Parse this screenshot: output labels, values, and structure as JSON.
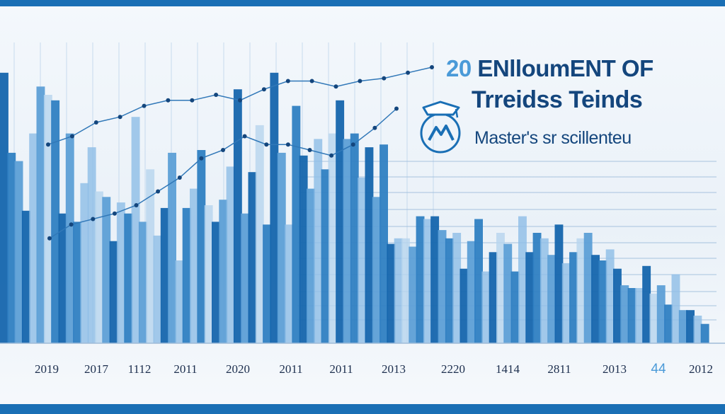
{
  "colors": {
    "frame": "#1a6fb5",
    "accent": "#4a9ad8",
    "title": "#14467d",
    "bar_palette": [
      "#1565ad",
      "#2f7fc2",
      "#5d9fd6",
      "#8dbde6",
      "#b6d4ee"
    ],
    "line": "#3178b8"
  },
  "title": {
    "number": "20",
    "line1_rest": "ENlloumENT OF",
    "line2": "Trreidss Teinds",
    "subtitle": "Master's sr scillenteu"
  },
  "logo_icon": "graduation-globe-icon",
  "chart_data": {
    "type": "bar",
    "title": "20 ENlloumENT OF Trreidss Teinds",
    "xlabel": "",
    "ylabel": "",
    "ylim": [
      0,
      100
    ],
    "grid": true,
    "x_tick_labels": [
      "2019",
      "2017",
      "1112",
      "2011",
      "2020",
      "2011",
      "2011",
      "2013",
      "2220",
      "1414",
      "2811",
      "2013",
      "44",
      "2012"
    ],
    "highlight_tick_index": 12,
    "bars": [
      {
        "v": 98,
        "s": 0
      },
      {
        "v": 69,
        "s": 1
      },
      {
        "v": 66,
        "s": 2
      },
      {
        "v": 48,
        "s": 0
      },
      {
        "v": 76,
        "s": 3
      },
      {
        "v": 93,
        "s": 2
      },
      {
        "v": 90,
        "s": 4
      },
      {
        "v": 88,
        "s": 1
      },
      {
        "v": 47,
        "s": 0
      },
      {
        "v": 76,
        "s": 2
      },
      {
        "v": 44,
        "s": 1
      },
      {
        "v": 58,
        "s": 3
      },
      {
        "v": 71,
        "s": 3
      },
      {
        "v": 55,
        "s": 4
      },
      {
        "v": 53,
        "s": 2
      },
      {
        "v": 37,
        "s": 0
      },
      {
        "v": 51,
        "s": 3
      },
      {
        "v": 47,
        "s": 1
      },
      {
        "v": 82,
        "s": 3
      },
      {
        "v": 44,
        "s": 2
      },
      {
        "v": 63,
        "s": 4
      },
      {
        "v": 39,
        "s": 3
      },
      {
        "v": 49,
        "s": 0
      },
      {
        "v": 69,
        "s": 2
      },
      {
        "v": 30,
        "s": 3
      },
      {
        "v": 49,
        "s": 1
      },
      {
        "v": 56,
        "s": 3
      },
      {
        "v": 70,
        "s": 1
      },
      {
        "v": 50,
        "s": 4
      },
      {
        "v": 44,
        "s": 0
      },
      {
        "v": 52,
        "s": 2
      },
      {
        "v": 64,
        "s": 3
      },
      {
        "v": 92,
        "s": 0
      },
      {
        "v": 47,
        "s": 2
      },
      {
        "v": 62,
        "s": 0
      },
      {
        "v": 79,
        "s": 4
      },
      {
        "v": 43,
        "s": 1
      },
      {
        "v": 98,
        "s": 0
      },
      {
        "v": 69,
        "s": 2
      },
      {
        "v": 43,
        "s": 3
      },
      {
        "v": 86,
        "s": 1
      },
      {
        "v": 68,
        "s": 0
      },
      {
        "v": 56,
        "s": 2
      },
      {
        "v": 74,
        "s": 3
      },
      {
        "v": 63,
        "s": 1
      },
      {
        "v": 76,
        "s": 4
      },
      {
        "v": 88,
        "s": 0
      },
      {
        "v": 74,
        "s": 2
      },
      {
        "v": 76,
        "s": 1
      },
      {
        "v": 60,
        "s": 3
      },
      {
        "v": 71,
        "s": 0
      },
      {
        "v": 53,
        "s": 2
      },
      {
        "v": 72,
        "s": 1
      },
      {
        "v": 36,
        "s": 0
      },
      {
        "v": 38,
        "s": 3
      },
      {
        "v": 38,
        "s": 4
      },
      {
        "v": 35,
        "s": 2
      },
      {
        "v": 46,
        "s": 1
      },
      {
        "v": 45,
        "s": 3
      },
      {
        "v": 46,
        "s": 0
      },
      {
        "v": 41,
        "s": 2
      },
      {
        "v": 38,
        "s": 1
      },
      {
        "v": 40,
        "s": 3
      },
      {
        "v": 27,
        "s": 0
      },
      {
        "v": 37,
        "s": 2
      },
      {
        "v": 45,
        "s": 1
      },
      {
        "v": 26,
        "s": 3
      },
      {
        "v": 33,
        "s": 0
      },
      {
        "v": 40,
        "s": 4
      },
      {
        "v": 36,
        "s": 2
      },
      {
        "v": 26,
        "s": 1
      },
      {
        "v": 46,
        "s": 3
      },
      {
        "v": 33,
        "s": 0
      },
      {
        "v": 40,
        "s": 1
      },
      {
        "v": 38,
        "s": 3
      },
      {
        "v": 32,
        "s": 2
      },
      {
        "v": 43,
        "s": 0
      },
      {
        "v": 29,
        "s": 3
      },
      {
        "v": 33,
        "s": 1
      },
      {
        "v": 38,
        "s": 4
      },
      {
        "v": 40,
        "s": 2
      },
      {
        "v": 32,
        "s": 0
      },
      {
        "v": 30,
        "s": 1
      },
      {
        "v": 34,
        "s": 3
      },
      {
        "v": 27,
        "s": 0
      },
      {
        "v": 21,
        "s": 2
      },
      {
        "v": 20,
        "s": 1
      },
      {
        "v": 20,
        "s": 3
      },
      {
        "v": 28,
        "s": 0
      },
      {
        "v": 18,
        "s": 4
      },
      {
        "v": 21,
        "s": 2
      },
      {
        "v": 14,
        "s": 1
      },
      {
        "v": 25,
        "s": 3
      },
      {
        "v": 12,
        "s": 2
      },
      {
        "v": 12,
        "s": 0
      },
      {
        "v": 10,
        "s": 3
      },
      {
        "v": 7,
        "s": 1
      }
    ],
    "trend_upper": [
      72,
      75,
      80,
      82,
      86,
      88,
      88,
      90,
      88,
      92,
      95,
      95,
      93,
      95,
      96,
      98,
      100
    ],
    "trend_lower": [
      38,
      43,
      45,
      47,
      50,
      55,
      60,
      67,
      70,
      75,
      72,
      72,
      70,
      68,
      72,
      78,
      85
    ]
  }
}
